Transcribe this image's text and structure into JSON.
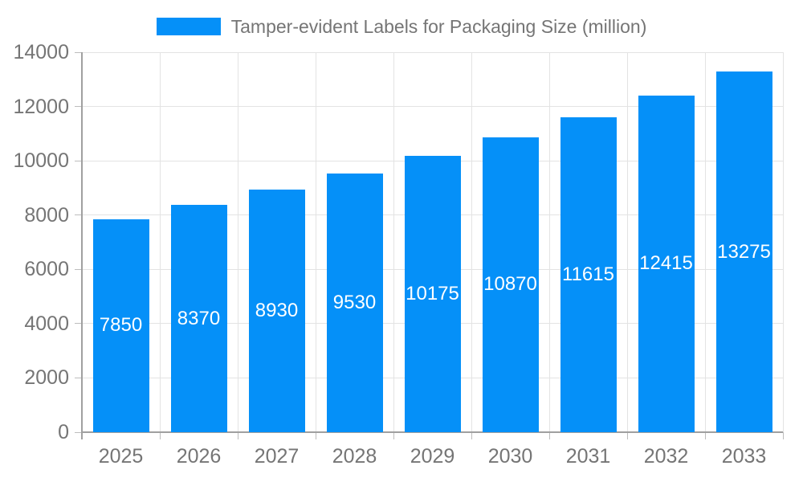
{
  "legend": {
    "label": "Tamper-evident Labels for Packaging Size (million)"
  },
  "chart_data": {
    "type": "bar",
    "title": "Tamper-evident Labels for Packaging Size (million)",
    "series_name": "Tamper-evident Labels for Packaging Size (million)",
    "categories": [
      "2025",
      "2026",
      "2027",
      "2028",
      "2029",
      "2030",
      "2031",
      "2032",
      "2033"
    ],
    "values": [
      7850,
      8370,
      8930,
      9530,
      10175,
      10870,
      11615,
      12415,
      13275
    ],
    "data_labels": [
      "7850",
      "8370",
      "8930",
      "9530",
      "10175",
      "10870",
      "11615",
      "12415",
      "13275"
    ],
    "xlabel": "",
    "ylabel": "",
    "ylim": [
      0,
      14000
    ],
    "ytick_step": 2000,
    "ytick_labels": [
      "0",
      "2000",
      "4000",
      "6000",
      "8000",
      "10000",
      "12000",
      "14000"
    ],
    "grid": true,
    "legend_position": "top-center",
    "colors": {
      "bar": "#0590F8",
      "bar_label_text": "#ffffff",
      "axis_text": "#757575",
      "legend_text": "#757575",
      "gridline": "#e3e3e3",
      "axis_line": "#a0a0a0",
      "tick": "#bdbdbd",
      "background": "#ffffff"
    }
  }
}
